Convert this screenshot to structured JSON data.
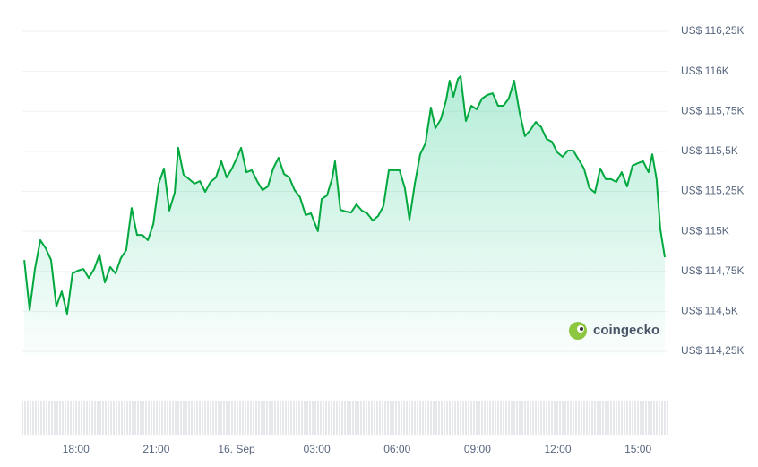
{
  "chart_data": {
    "type": "line",
    "x": [
      16.07,
      16.27,
      16.47,
      16.67,
      16.87,
      17.07,
      17.27,
      17.47,
      17.67,
      17.87,
      18.07,
      18.28,
      18.48,
      18.68,
      18.88,
      19.08,
      19.28,
      19.48,
      19.68,
      19.88,
      20.08,
      20.28,
      20.48,
      20.69,
      20.89,
      21.09,
      21.29,
      21.49,
      21.69,
      21.82,
      22.02,
      22.23,
      22.43,
      22.63,
      22.83,
      23.03,
      23.23,
      23.43,
      23.63,
      23.83,
      24.03,
      24.17,
      24.37,
      24.57,
      24.77,
      24.97,
      25.17,
      25.37,
      25.57,
      25.77,
      25.97,
      26.17,
      26.37,
      26.58,
      26.78,
      27.04,
      27.18,
      27.38,
      27.58,
      27.68,
      27.88,
      28.08,
      28.28,
      28.48,
      28.68,
      28.88,
      29.09,
      29.29,
      29.49,
      29.69,
      29.89,
      30.09,
      30.29,
      30.46,
      30.66,
      30.86,
      31.06,
      31.26,
      31.43,
      31.63,
      31.83,
      31.96,
      32.1,
      32.27,
      32.37,
      32.57,
      32.77,
      32.97,
      33.17,
      33.37,
      33.57,
      33.77,
      33.97,
      34.17,
      34.37,
      34.57,
      34.77,
      34.98,
      35.18,
      35.38,
      35.58,
      35.78,
      35.98,
      36.18,
      36.38,
      36.58,
      36.78,
      36.98,
      37.18,
      37.39,
      37.59,
      37.79,
      37.99,
      38.19,
      38.39,
      38.59,
      38.79,
      38.99,
      39.19,
      39.39,
      39.53,
      39.69,
      39.83,
      40.0
    ],
    "series": [
      {
        "color": "#00a83e",
        "values": [
          114821,
          114508,
          114765,
          114945,
          114894,
          114821,
          114530,
          114625,
          114485,
          114737,
          114754,
          114765,
          114709,
          114765,
          114855,
          114681,
          114777,
          114737,
          114833,
          114883,
          115146,
          114978,
          114978,
          114945,
          115045,
          115298,
          115393,
          115130,
          115242,
          115522,
          115354,
          115326,
          115298,
          115314,
          115247,
          115309,
          115337,
          115438,
          115337,
          115393,
          115466,
          115522,
          115370,
          115382,
          115314,
          115258,
          115281,
          115393,
          115460,
          115359,
          115337,
          115258,
          115214,
          115102,
          115113,
          115001,
          115202,
          115225,
          115337,
          115438,
          115135,
          115124,
          115118,
          115169,
          115130,
          115113,
          115068,
          115096,
          115158,
          115382,
          115382,
          115382,
          115270,
          115074,
          115298,
          115482,
          115550,
          115774,
          115645,
          115701,
          115819,
          115942,
          115841,
          115953,
          115970,
          115690,
          115785,
          115763,
          115830,
          115852,
          115863,
          115785,
          115785,
          115830,
          115942,
          115746,
          115595,
          115634,
          115684,
          115651,
          115578,
          115561,
          115494,
          115466,
          115505,
          115505,
          115449,
          115393,
          115270,
          115242,
          115393,
          115326,
          115326,
          115309,
          115370,
          115281,
          115410,
          115426,
          115438,
          115370,
          115482,
          115326,
          115017,
          114838
        ]
      }
    ],
    "xlim": [
      16,
      40.1
    ],
    "xticks": [
      {
        "value": 18,
        "label": "18:00"
      },
      {
        "value": 21,
        "label": "21:00"
      },
      {
        "value": 24,
        "label": "16. Sep"
      },
      {
        "value": 27,
        "label": "03:00"
      },
      {
        "value": 30,
        "label": "06:00"
      },
      {
        "value": 33,
        "label": "09:00"
      },
      {
        "value": 36,
        "label": "12:00"
      },
      {
        "value": 39,
        "label": "15:00"
      }
    ],
    "ylim": [
      114250,
      116250
    ],
    "yticks": [
      {
        "value": 116250,
        "label": "US$ 116,25K"
      },
      {
        "value": 116000,
        "label": "US$ 116K"
      },
      {
        "value": 115750,
        "label": "US$ 115,75K"
      },
      {
        "value": 115500,
        "label": "US$ 115,5K"
      },
      {
        "value": 115250,
        "label": "US$ 115,25K"
      },
      {
        "value": 115000,
        "label": "US$ 115K"
      },
      {
        "value": 114750,
        "label": "US$ 114,75K"
      },
      {
        "value": 114500,
        "label": "US$ 114,5K"
      },
      {
        "value": 114250,
        "label": "US$ 114,25K"
      }
    ],
    "grid": true,
    "watermark": "coingecko"
  }
}
